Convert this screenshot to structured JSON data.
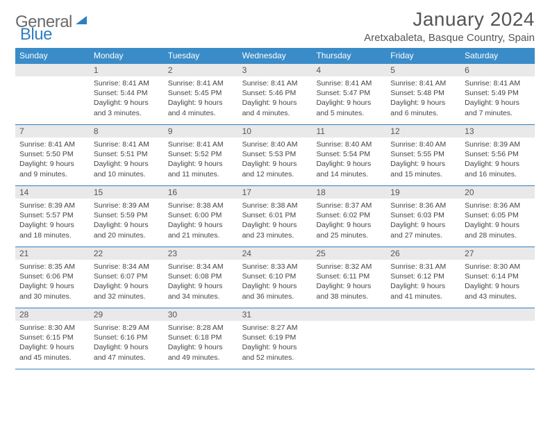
{
  "logo": {
    "text1": "General",
    "text2": "Blue"
  },
  "title": "January 2024",
  "location": "Aretxabaleta, Basque Country, Spain",
  "colors": {
    "header_bg": "#3a8cc8",
    "header_text": "#ffffff",
    "daynum_bg": "#e9e9e9",
    "daynum_text": "#555555",
    "cell_text": "#444444",
    "rule": "#2f7ec1",
    "logo_gray": "#6a6a6a",
    "logo_blue": "#2f7ec1"
  },
  "dow": [
    "Sunday",
    "Monday",
    "Tuesday",
    "Wednesday",
    "Thursday",
    "Friday",
    "Saturday"
  ],
  "weeks": [
    [
      {
        "n": "",
        "sr": "",
        "ss": "",
        "dl": ""
      },
      {
        "n": "1",
        "sr": "8:41 AM",
        "ss": "5:44 PM",
        "dl": "9 hours and 3 minutes."
      },
      {
        "n": "2",
        "sr": "8:41 AM",
        "ss": "5:45 PM",
        "dl": "9 hours and 4 minutes."
      },
      {
        "n": "3",
        "sr": "8:41 AM",
        "ss": "5:46 PM",
        "dl": "9 hours and 4 minutes."
      },
      {
        "n": "4",
        "sr": "8:41 AM",
        "ss": "5:47 PM",
        "dl": "9 hours and 5 minutes."
      },
      {
        "n": "5",
        "sr": "8:41 AM",
        "ss": "5:48 PM",
        "dl": "9 hours and 6 minutes."
      },
      {
        "n": "6",
        "sr": "8:41 AM",
        "ss": "5:49 PM",
        "dl": "9 hours and 7 minutes."
      }
    ],
    [
      {
        "n": "7",
        "sr": "8:41 AM",
        "ss": "5:50 PM",
        "dl": "9 hours and 9 minutes."
      },
      {
        "n": "8",
        "sr": "8:41 AM",
        "ss": "5:51 PM",
        "dl": "9 hours and 10 minutes."
      },
      {
        "n": "9",
        "sr": "8:41 AM",
        "ss": "5:52 PM",
        "dl": "9 hours and 11 minutes."
      },
      {
        "n": "10",
        "sr": "8:40 AM",
        "ss": "5:53 PM",
        "dl": "9 hours and 12 minutes."
      },
      {
        "n": "11",
        "sr": "8:40 AM",
        "ss": "5:54 PM",
        "dl": "9 hours and 14 minutes."
      },
      {
        "n": "12",
        "sr": "8:40 AM",
        "ss": "5:55 PM",
        "dl": "9 hours and 15 minutes."
      },
      {
        "n": "13",
        "sr": "8:39 AM",
        "ss": "5:56 PM",
        "dl": "9 hours and 16 minutes."
      }
    ],
    [
      {
        "n": "14",
        "sr": "8:39 AM",
        "ss": "5:57 PM",
        "dl": "9 hours and 18 minutes."
      },
      {
        "n": "15",
        "sr": "8:39 AM",
        "ss": "5:59 PM",
        "dl": "9 hours and 20 minutes."
      },
      {
        "n": "16",
        "sr": "8:38 AM",
        "ss": "6:00 PM",
        "dl": "9 hours and 21 minutes."
      },
      {
        "n": "17",
        "sr": "8:38 AM",
        "ss": "6:01 PM",
        "dl": "9 hours and 23 minutes."
      },
      {
        "n": "18",
        "sr": "8:37 AM",
        "ss": "6:02 PM",
        "dl": "9 hours and 25 minutes."
      },
      {
        "n": "19",
        "sr": "8:36 AM",
        "ss": "6:03 PM",
        "dl": "9 hours and 27 minutes."
      },
      {
        "n": "20",
        "sr": "8:36 AM",
        "ss": "6:05 PM",
        "dl": "9 hours and 28 minutes."
      }
    ],
    [
      {
        "n": "21",
        "sr": "8:35 AM",
        "ss": "6:06 PM",
        "dl": "9 hours and 30 minutes."
      },
      {
        "n": "22",
        "sr": "8:34 AM",
        "ss": "6:07 PM",
        "dl": "9 hours and 32 minutes."
      },
      {
        "n": "23",
        "sr": "8:34 AM",
        "ss": "6:08 PM",
        "dl": "9 hours and 34 minutes."
      },
      {
        "n": "24",
        "sr": "8:33 AM",
        "ss": "6:10 PM",
        "dl": "9 hours and 36 minutes."
      },
      {
        "n": "25",
        "sr": "8:32 AM",
        "ss": "6:11 PM",
        "dl": "9 hours and 38 minutes."
      },
      {
        "n": "26",
        "sr": "8:31 AM",
        "ss": "6:12 PM",
        "dl": "9 hours and 41 minutes."
      },
      {
        "n": "27",
        "sr": "8:30 AM",
        "ss": "6:14 PM",
        "dl": "9 hours and 43 minutes."
      }
    ],
    [
      {
        "n": "28",
        "sr": "8:30 AM",
        "ss": "6:15 PM",
        "dl": "9 hours and 45 minutes."
      },
      {
        "n": "29",
        "sr": "8:29 AM",
        "ss": "6:16 PM",
        "dl": "9 hours and 47 minutes."
      },
      {
        "n": "30",
        "sr": "8:28 AM",
        "ss": "6:18 PM",
        "dl": "9 hours and 49 minutes."
      },
      {
        "n": "31",
        "sr": "8:27 AM",
        "ss": "6:19 PM",
        "dl": "9 hours and 52 minutes."
      },
      {
        "n": "",
        "sr": "",
        "ss": "",
        "dl": ""
      },
      {
        "n": "",
        "sr": "",
        "ss": "",
        "dl": ""
      },
      {
        "n": "",
        "sr": "",
        "ss": "",
        "dl": ""
      }
    ]
  ],
  "labels": {
    "sunrise": "Sunrise:",
    "sunset": "Sunset:",
    "daylight": "Daylight:"
  }
}
